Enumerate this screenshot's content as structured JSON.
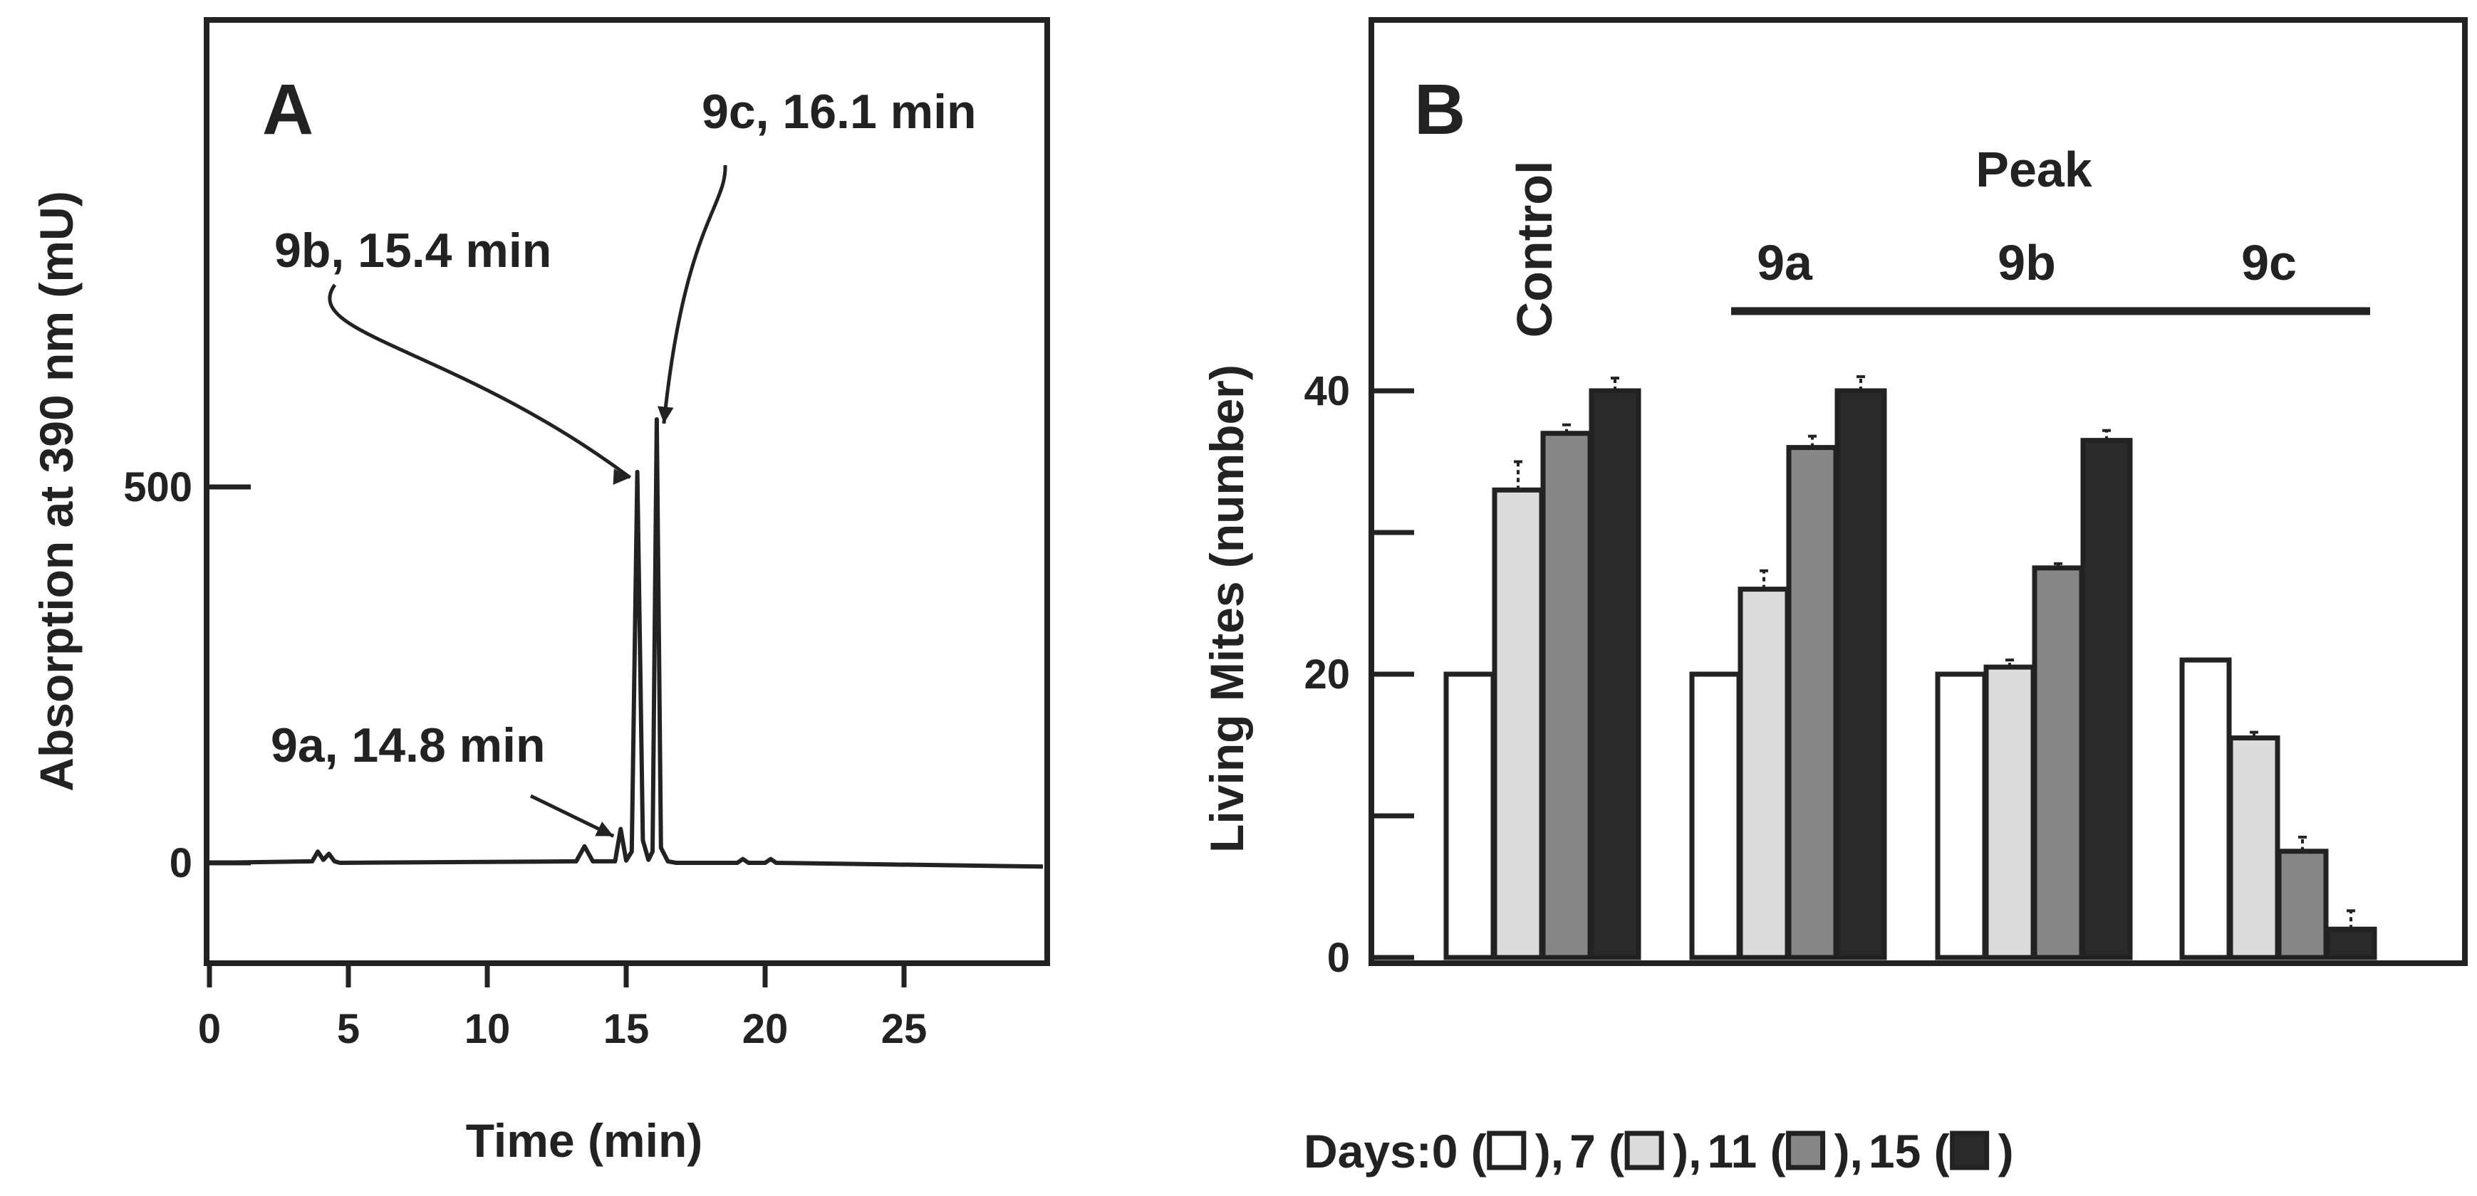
{
  "colors": {
    "ink": "#222222",
    "days_0": "#ffffff",
    "days_7": "#dcdcdc",
    "days_11": "#878787",
    "days_15": "#2a2a2a"
  },
  "chart_data": [
    {
      "panel": "A",
      "type": "line",
      "xlabel": "Time (min)",
      "ylabel": "Absorption at 390 nm (mU)",
      "xlim": [
        0,
        30
      ],
      "ylim": [
        -110,
        1200
      ],
      "x_ticks": [
        0,
        5,
        10,
        15,
        20,
        25
      ],
      "y_ticks": [
        0,
        500
      ],
      "grid": false,
      "series": [
        {
          "x": [
            0,
            3.7,
            3.9,
            4.1,
            4.3,
            4.5,
            4.7,
            13.2,
            13.5,
            13.8,
            14.6,
            14.8,
            15.0,
            15.2,
            15.4,
            15.6,
            15.8,
            15.95,
            16.1,
            16.25,
            16.5,
            16.8,
            17.5,
            19.0,
            19.2,
            19.4,
            20.0,
            20.2,
            20.4,
            30
          ],
          "y": [
            0,
            2,
            15,
            4,
            12,
            2,
            0,
            2,
            22,
            2,
            2,
            45,
            3,
            15,
            520,
            30,
            4,
            15,
            590,
            20,
            2,
            0,
            0,
            0,
            5,
            0,
            0,
            5,
            0,
            -5
          ]
        }
      ],
      "annotations": [
        {
          "text": "9a, 14.8 min",
          "x": 14.8,
          "y": 45
        },
        {
          "text": "9b, 15.4 min",
          "x": 15.4,
          "y": 520
        },
        {
          "text": "9c, 16.1 min",
          "x": 16.1,
          "y": 590
        }
      ]
    },
    {
      "panel": "B",
      "type": "bar",
      "ylabel": "Living Mites (number)",
      "ylim": [
        0,
        66
      ],
      "y_ticks": [
        0,
        20,
        40
      ],
      "y_minor_ticks": [
        10,
        30
      ],
      "categories": [
        "Control",
        "9a",
        "9b",
        "9c"
      ],
      "group_header": "Peak",
      "series": [
        {
          "name": "0",
          "values": [
            20,
            20,
            20,
            21
          ]
        },
        {
          "name": "7",
          "values": [
            33,
            26,
            20.5,
            15.5
          ]
        },
        {
          "name": "11",
          "values": [
            37,
            36,
            27.5,
            7.5
          ]
        },
        {
          "name": "15",
          "values": [
            40,
            40,
            36.5,
            2
          ]
        }
      ],
      "errors": [
        [
          0,
          0,
          0,
          0
        ],
        [
          2,
          1.3,
          0.5,
          0.4
        ],
        [
          0.6,
          0.8,
          0.3,
          1.0
        ],
        [
          0.9,
          1.0,
          0.7,
          1.3
        ]
      ],
      "legend": {
        "prefix": "Days: ",
        "items": [
          {
            "label": "0",
            "open": "(",
            "close": "),",
            "color": "#ffffff"
          },
          {
            "label": "7",
            "open": "(",
            "close": "),",
            "color": "#dcdcdc"
          },
          {
            "label": "11",
            "open": "(",
            "close": "),",
            "color": "#878787"
          },
          {
            "label": "15",
            "open": "(",
            "close": ")",
            "color": "#2a2a2a"
          }
        ]
      }
    }
  ],
  "panel_a": {
    "letter": "A"
  },
  "panel_b": {
    "letter": "B"
  }
}
